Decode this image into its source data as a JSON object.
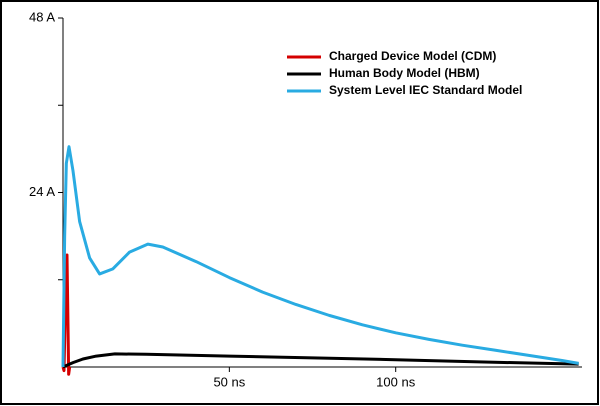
{
  "chart_data": {
    "type": "line",
    "legend_position": "upper right",
    "xlim": [
      0,
      156
    ],
    "xticks": [
      {
        "value": 50,
        "label": "50 ns"
      },
      {
        "value": 100,
        "label": "100 ns"
      }
    ],
    "ylim": [
      0,
      48
    ],
    "yticks": [
      {
        "value": 12,
        "label": null
      },
      {
        "value": 24,
        "label": "24 A"
      },
      {
        "value": 36,
        "label": null
      },
      {
        "value": 48,
        "label": "48 A"
      }
    ],
    "series": [
      {
        "name": "Charged Device Model (CDM)",
        "color": "#d40000",
        "x": [
          0,
          0.3,
          0.6,
          1.0,
          1.2,
          1.4,
          1.7,
          2.0
        ],
        "values": [
          0,
          -0.5,
          6,
          13,
          15.4,
          9,
          -1,
          0
        ]
      },
      {
        "name": "Human Body Model (HBM)",
        "color": "#000000",
        "x": [
          0,
          3,
          6,
          10,
          15.6,
          25,
          50,
          75,
          100,
          125,
          155
        ],
        "values": [
          0,
          0.6,
          1.1,
          1.5,
          1.8,
          1.75,
          1.5,
          1.25,
          1.0,
          0.7,
          0.4
        ]
      },
      {
        "name": "System Level IEC Standard Model",
        "color": "#29abe2",
        "x": [
          0,
          0.5,
          1,
          1.8,
          3,
          5,
          8,
          11,
          15,
          20,
          25.5,
          30,
          40,
          50,
          60,
          70,
          80,
          90,
          100,
          110,
          120,
          130,
          140,
          150,
          155
        ],
        "values": [
          0,
          18,
          28,
          30.3,
          27,
          20,
          15,
          12.8,
          13.5,
          15.8,
          16.9,
          16.5,
          14.5,
          12.3,
          10.3,
          8.6,
          7.1,
          5.8,
          4.7,
          3.8,
          3.0,
          2.3,
          1.6,
          0.9,
          0.5
        ]
      }
    ]
  }
}
